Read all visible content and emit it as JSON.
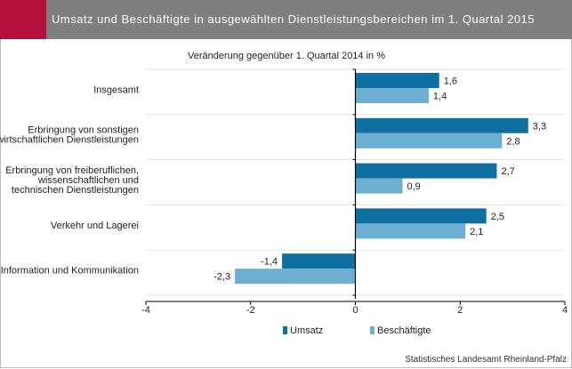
{
  "header": {
    "title": "Umsatz und Beschäftigte in ausgewählten Dienstleistungsbereichen im 1. Quartal 2015"
  },
  "source": "Statistisches Landesamt Rheinland-Pfalz",
  "colors": {
    "header_bg": "#7f7f7f",
    "accent": "#b5103c",
    "umsatz": "#0f6fa0",
    "beschaeftigte": "#6cafd0"
  },
  "chart_data": {
    "type": "bar",
    "orientation": "horizontal",
    "subtitle": "Veränderung gegenüber 1. Quartal 2014 in %",
    "categories": [
      [
        "Insgesamt"
      ],
      [
        "Erbringung von sonstigen",
        "wirtschaftlichen Dienstleistungen"
      ],
      [
        "Erbringung von freiberuflichen,",
        "wissenschaftlichen und",
        "technischen Dienstleistungen"
      ],
      [
        "Verkehr und Lagerei"
      ],
      [
        "Information und Kommunikation"
      ]
    ],
    "series": [
      {
        "name": "Umsatz",
        "values": [
          1.6,
          3.3,
          2.7,
          2.5,
          -1.4
        ],
        "labels": [
          "1,6",
          "3,3",
          "2,7",
          "2,5",
          "-1,4"
        ]
      },
      {
        "name": "Beschäftigte",
        "values": [
          1.4,
          2.8,
          0.9,
          2.1,
          -2.3
        ],
        "labels": [
          "1,4",
          "2,8",
          "0,9",
          "2,1",
          "-2,3"
        ]
      }
    ],
    "xlim": [
      -4,
      4
    ],
    "xticks": [
      -4,
      -2,
      0,
      2,
      4
    ],
    "xtick_labels": [
      "-4",
      "-2",
      "0",
      "2",
      "4"
    ],
    "grid": true,
    "legend": "bottom"
  }
}
